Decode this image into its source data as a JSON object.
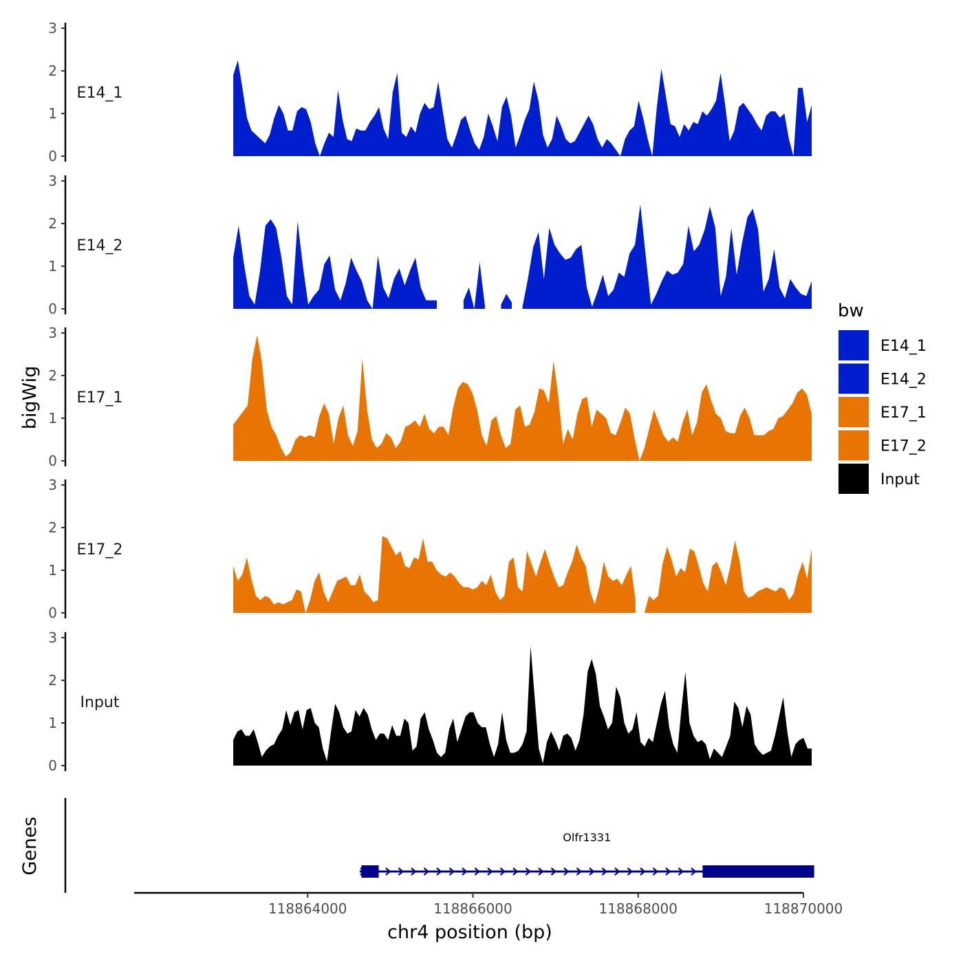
{
  "chart_data": {
    "type": "area",
    "title": "",
    "xlabel": "chr4 position (bp)",
    "ylabel": "bigWig",
    "genes_label": "Genes",
    "xlim": [
      118861900,
      118870000
    ],
    "ylim": [
      0,
      3
    ],
    "x_ticks": [
      {
        "value": 118864000,
        "label": "118864000"
      },
      {
        "value": 118866000,
        "label": "118866000"
      },
      {
        "value": 118868000,
        "label": "118868000"
      },
      {
        "value": 118870000,
        "label": "118870000"
      }
    ],
    "y_ticks": [
      {
        "value": 0,
        "label": "0"
      },
      {
        "value": 1,
        "label": "1"
      },
      {
        "value": 2,
        "label": "2"
      },
      {
        "value": 3,
        "label": "3"
      }
    ],
    "legend": {
      "title": "bw",
      "position": "right",
      "entries": [
        {
          "label": "E14_1",
          "color": "#001ecd"
        },
        {
          "label": "E14_2",
          "color": "#001ecd"
        },
        {
          "label": "E17_1",
          "color": "#e87503"
        },
        {
          "label": "E17_2",
          "color": "#e87503"
        },
        {
          "label": "Input",
          "color": "#000000"
        }
      ]
    },
    "track_x_range": [
      118863100,
      118870100
    ],
    "series": [
      {
        "name": "E14_1",
        "color": "#001ecd",
        "values": [
          1.9,
          2.25,
          1.6,
          0.9,
          0.6,
          0.5,
          0.4,
          0.3,
          0.5,
          0.9,
          1.2,
          1.0,
          0.6,
          0.6,
          1.05,
          1.15,
          1.1,
          0.8,
          0.3,
          0.0,
          0.3,
          0.55,
          0.45,
          1.55,
          0.85,
          0.4,
          0.35,
          0.65,
          0.6,
          0.6,
          0.8,
          0.95,
          1.15,
          0.65,
          0.4,
          1.5,
          1.95,
          0.55,
          0.45,
          0.7,
          0.55,
          1.0,
          1.25,
          1.1,
          1.15,
          1.75,
          1.05,
          0.4,
          0.2,
          0.5,
          0.85,
          0.95,
          0.6,
          0.3,
          0.15,
          0.45,
          1.0,
          0.7,
          0.35,
          1.15,
          1.4,
          0.95,
          0.2,
          0.5,
          0.85,
          1.1,
          1.75,
          1.3,
          0.5,
          0.2,
          0.4,
          0.95,
          0.7,
          0.4,
          0.3,
          0.35,
          0.55,
          0.75,
          0.95,
          0.75,
          0.4,
          0.2,
          0.4,
          0.3,
          0.15,
          0.0,
          0.4,
          0.6,
          0.7,
          1.3,
          0.9,
          0.4,
          0.0,
          1.15,
          2.05,
          1.4,
          0.75,
          0.7,
          0.45,
          0.75,
          0.6,
          0.8,
          0.75,
          1.05,
          0.95,
          1.1,
          1.3,
          1.95,
          1.2,
          0.35,
          0.6,
          1.15,
          1.25,
          1.1,
          0.95,
          0.75,
          0.6,
          0.95,
          1.05,
          1.05,
          0.9,
          1.0,
          0.4,
          0.0,
          1.6,
          1.6,
          0.8,
          1.2
        ]
      },
      {
        "name": "E14_2",
        "color": "#001ecd",
        "values": [
          1.2,
          1.95,
          1.05,
          0.3,
          0.1,
          0.9,
          1.95,
          2.1,
          1.9,
          1.2,
          0.3,
          0.1,
          2.05,
          1.0,
          0.1,
          0.3,
          0.45,
          1.05,
          1.25,
          0.45,
          0.2,
          0.6,
          1.2,
          0.9,
          0.65,
          0.2,
          0.0,
          1.25,
          0.5,
          0.25,
          0.7,
          0.95,
          0.55,
          0.9,
          1.2,
          0.5,
          0.2,
          0.2,
          0.2,
          null,
          null,
          null,
          null,
          0.2,
          0.5,
          0.0,
          1.1,
          0.05,
          null,
          null,
          0.1,
          0.35,
          0.15,
          null,
          0.05,
          0.7,
          1.45,
          1.8,
          0.7,
          1.9,
          1.5,
          1.3,
          1.15,
          1.2,
          1.4,
          1.5,
          0.5,
          0.05,
          0.4,
          0.8,
          0.3,
          0.45,
          0.85,
          0.75,
          1.3,
          1.5,
          2.45,
          1.25,
          0.1,
          0.35,
          0.65,
          0.9,
          0.8,
          0.85,
          1.05,
          1.95,
          1.35,
          1.5,
          1.85,
          2.4,
          1.9,
          0.3,
          0.75,
          1.9,
          0.8,
          1.55,
          2.15,
          2.35,
          1.85,
          0.4,
          0.7,
          1.4,
          0.5,
          0.25,
          0.7,
          0.5,
          0.35,
          0.3,
          0.65
        ]
      },
      {
        "name": "E17_1",
        "color": "#e87503",
        "values": [
          0.85,
          1.0,
          1.15,
          1.3,
          2.4,
          2.95,
          2.3,
          1.2,
          0.8,
          0.6,
          0.3,
          0.1,
          0.2,
          0.5,
          0.6,
          0.55,
          0.6,
          0.55,
          1.05,
          1.35,
          1.1,
          0.4,
          1.0,
          1.3,
          0.6,
          0.35,
          0.7,
          2.4,
          1.2,
          0.5,
          0.3,
          0.4,
          0.65,
          0.55,
          0.3,
          0.45,
          0.8,
          0.85,
          0.95,
          0.8,
          1.1,
          0.75,
          0.65,
          0.8,
          0.8,
          0.6,
          1.25,
          1.7,
          1.85,
          1.8,
          1.6,
          1.2,
          0.6,
          0.35,
          0.95,
          1.05,
          0.6,
          0.3,
          0.4,
          1.2,
          1.3,
          0.8,
          0.85,
          1.15,
          1.7,
          1.65,
          1.35,
          2.35,
          1.5,
          0.4,
          0.75,
          0.5,
          1.1,
          1.45,
          1.5,
          0.8,
          1.2,
          1.1,
          1.0,
          0.65,
          0.6,
          0.9,
          1.25,
          1.1,
          0.5,
          0.0,
          0.3,
          0.75,
          1.2,
          0.9,
          0.6,
          0.45,
          0.55,
          0.45,
          0.9,
          1.2,
          0.6,
          0.9,
          1.6,
          1.8,
          1.4,
          1.1,
          1.0,
          0.7,
          0.65,
          0.65,
          1.05,
          1.25,
          1.0,
          0.6,
          0.6,
          0.6,
          0.7,
          0.75,
          1.0,
          1.05,
          1.2,
          1.35,
          1.6,
          1.7,
          1.55,
          1.1
        ]
      },
      {
        "name": "E17_2",
        "color": "#e87503",
        "values": [
          1.1,
          0.75,
          0.9,
          1.3,
          0.8,
          0.4,
          0.3,
          0.4,
          0.35,
          0.2,
          0.25,
          0.2,
          0.25,
          0.3,
          0.55,
          0.5,
          0.0,
          0.3,
          0.75,
          0.95,
          0.5,
          0.25,
          0.5,
          0.75,
          0.8,
          0.85,
          0.65,
          0.65,
          0.9,
          0.5,
          0.4,
          0.25,
          0.3,
          1.8,
          1.75,
          1.55,
          1.35,
          1.45,
          1.1,
          1.05,
          1.3,
          1.25,
          1.75,
          1.2,
          1.2,
          1.0,
          0.9,
          0.85,
          0.95,
          0.85,
          0.7,
          0.6,
          0.6,
          0.55,
          0.6,
          0.75,
          0.65,
          0.9,
          0.5,
          0.3,
          0.4,
          1.2,
          1.3,
          0.6,
          0.5,
          1.45,
          1.15,
          0.85,
          1.2,
          1.5,
          1.15,
          0.85,
          0.6,
          0.65,
          0.95,
          1.2,
          1.6,
          1.3,
          1.1,
          0.5,
          0.2,
          0.6,
          1.2,
          0.85,
          0.75,
          0.8,
          0.65,
          0.9,
          1.1,
          0.3,
          null,
          0.0,
          0.4,
          0.3,
          0.4,
          1.15,
          1.55,
          1.25,
          0.85,
          1.05,
          0.95,
          1.5,
          1.45,
          1.1,
          0.7,
          0.5,
          1.1,
          1.2,
          0.95,
          0.65,
          1.1,
          1.7,
          1.25,
          0.5,
          0.35,
          0.4,
          0.5,
          0.55,
          0.6,
          0.55,
          0.5,
          0.6,
          0.55,
          0.3,
          0.45,
          0.9,
          1.2,
          0.8,
          1.5
        ]
      },
      {
        "name": "Input",
        "color": "#000000",
        "values": [
          0.6,
          0.8,
          0.85,
          0.7,
          0.7,
          0.85,
          0.55,
          0.2,
          0.35,
          0.45,
          0.5,
          0.7,
          0.85,
          1.3,
          0.95,
          1.25,
          1.3,
          0.85,
          1.3,
          1.35,
          1.0,
          0.9,
          0.4,
          0.1,
          0.8,
          1.45,
          1.25,
          0.9,
          0.75,
          0.8,
          1.3,
          1.15,
          1.35,
          1.2,
          0.85,
          0.6,
          0.75,
          0.75,
          0.6,
          0.95,
          0.7,
          0.7,
          1.1,
          1.0,
          0.35,
          0.45,
          1.1,
          1.25,
          0.85,
          0.6,
          0.3,
          0.2,
          0.3,
          0.85,
          1.1,
          0.55,
          0.85,
          1.15,
          1.25,
          1.25,
          1.0,
          0.9,
          0.9,
          0.5,
          0.2,
          0.5,
          1.25,
          0.6,
          0.3,
          0.3,
          0.35,
          0.5,
          0.8,
          2.8,
          1.6,
          0.4,
          0.05,
          0.55,
          0.8,
          0.6,
          0.35,
          0.7,
          0.75,
          0.65,
          0.35,
          0.6,
          1.2,
          2.2,
          2.5,
          2.15,
          1.4,
          1.15,
          0.85,
          1.0,
          1.85,
          1.6,
          1.0,
          0.75,
          0.85,
          1.25,
          0.55,
          0.45,
          0.65,
          0.55,
          1.0,
          1.45,
          1.75,
          0.9,
          0.5,
          0.3,
          1.3,
          2.2,
          1.0,
          0.7,
          0.55,
          0.6,
          0.5,
          0.15,
          0.4,
          0.3,
          0.2,
          0.45,
          0.7,
          1.5,
          1.35,
          0.9,
          1.4,
          1.2,
          0.5,
          0.35,
          0.25,
          0.3,
          0.35,
          0.7,
          1.15,
          1.6,
          0.8,
          0.2,
          0.5,
          0.6,
          0.65,
          0.4,
          0.4
        ]
      }
    ],
    "gene": {
      "name": "Olfr1331",
      "start": 118864630,
      "end": 118870130,
      "strand": "+",
      "exons": [
        {
          "start": 118864650,
          "end": 118864860
        },
        {
          "start": 118868780,
          "end": 118870130
        }
      ],
      "color": "#00008b"
    }
  }
}
